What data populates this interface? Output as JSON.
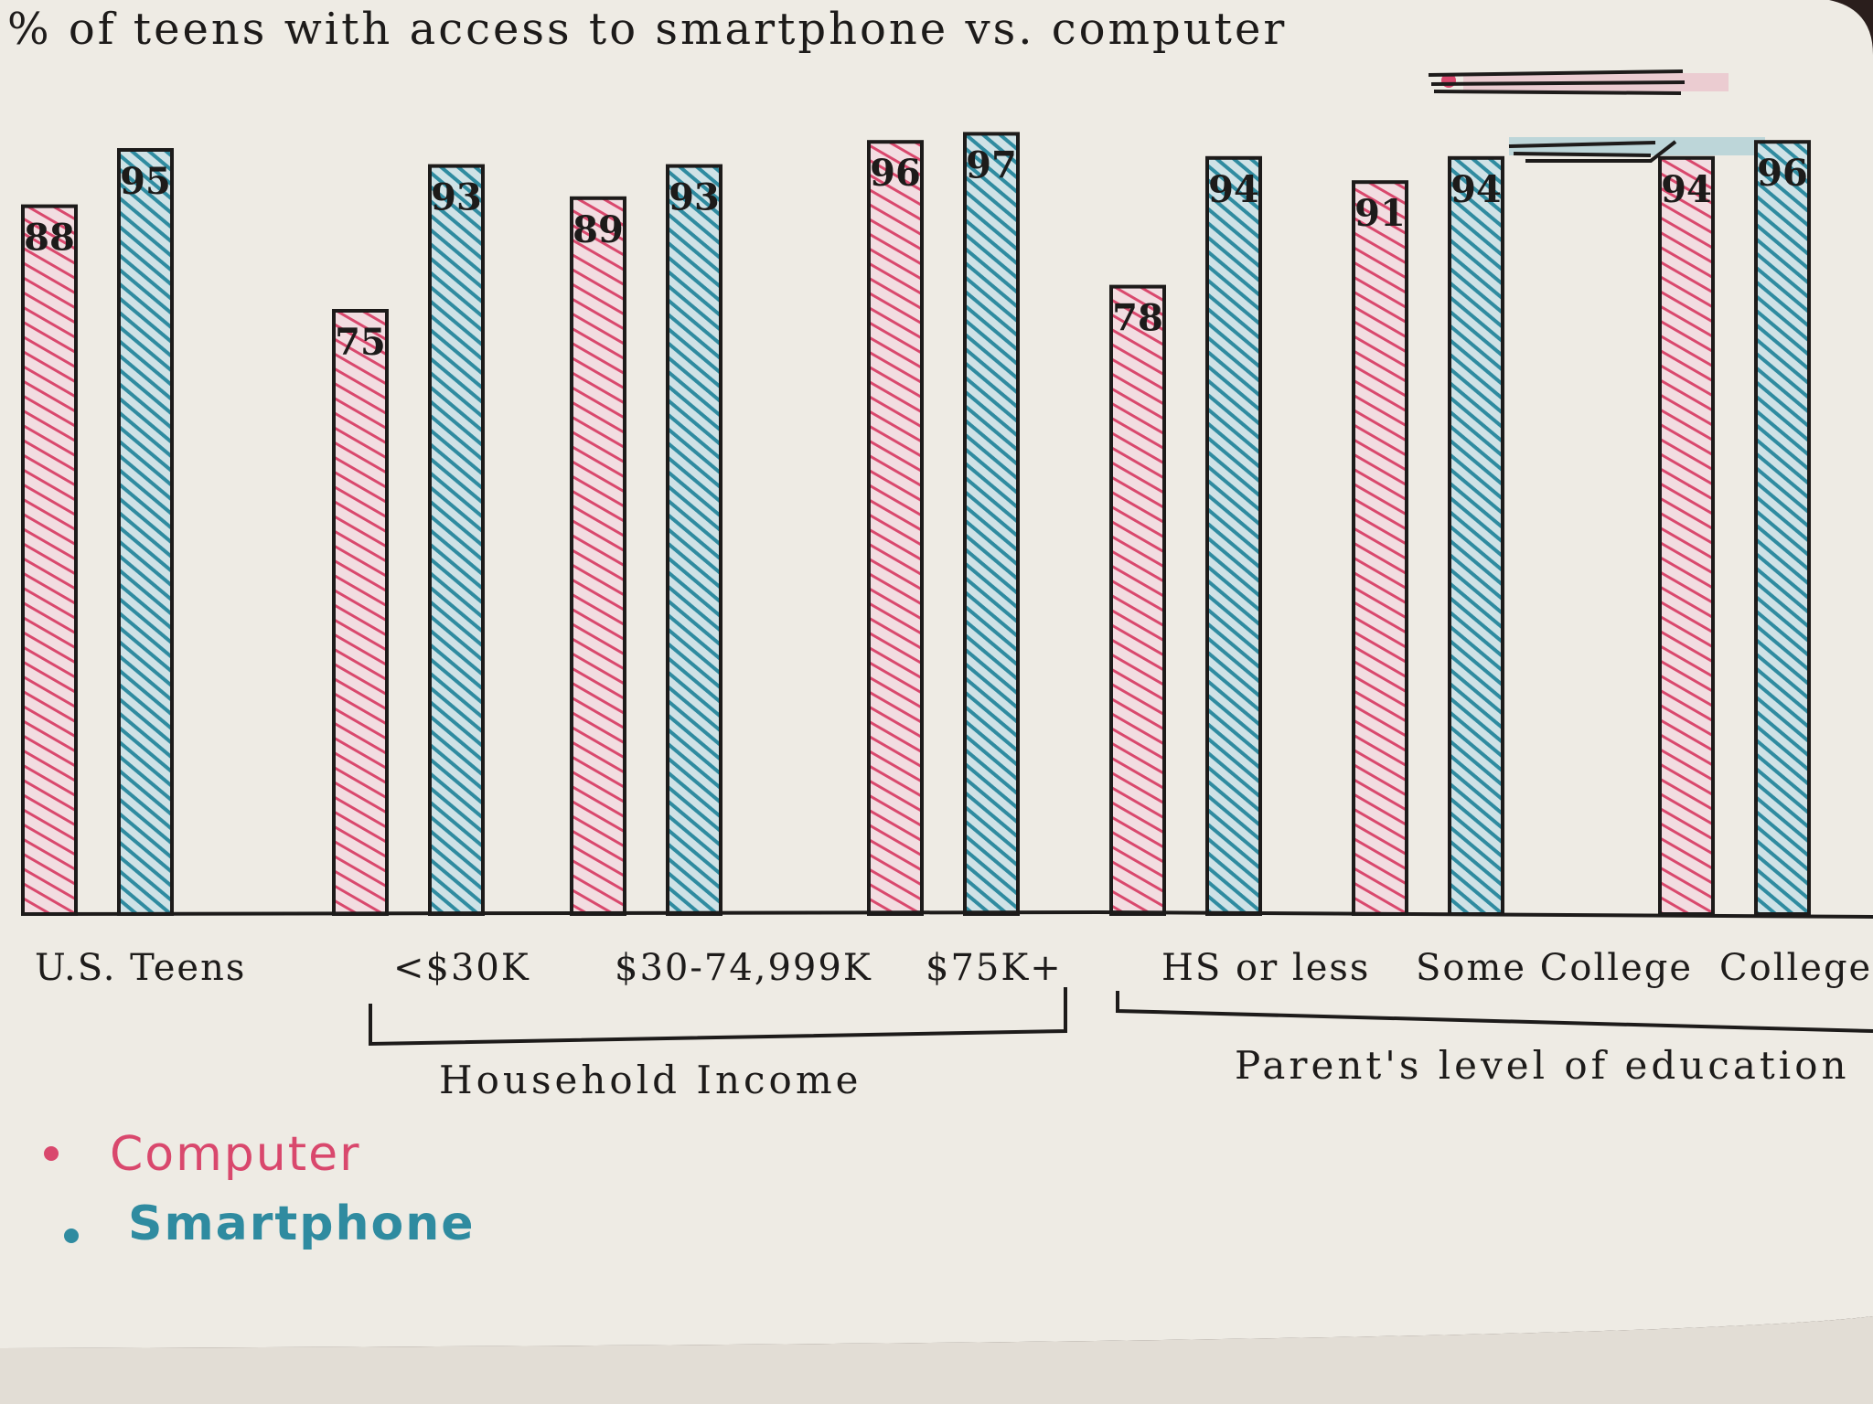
{
  "chart_data": {
    "type": "bar",
    "title": "% of teens with access to smartphone vs. computer",
    "categories": [
      "U.S. Teens",
      "<$30K",
      "$30-74,999K",
      "$75K+",
      "HS or less",
      "Some College",
      "College+"
    ],
    "series": [
      {
        "name": "Computer",
        "values": [
          88,
          75,
          89,
          96,
          78,
          91,
          94
        ]
      },
      {
        "name": "Smartphone",
        "values": [
          95,
          93,
          93,
          97,
          94,
          94,
          96
        ]
      }
    ],
    "groups": [
      {
        "label": "Household Income",
        "categories": [
          "<$30K",
          "$30-74,999K",
          "$75K+"
        ]
      },
      {
        "label": "Parent's level of education",
        "categories": [
          "HS or less",
          "Some College",
          "College+"
        ]
      }
    ],
    "ylim": [
      0,
      100
    ],
    "grid": false,
    "legend_placement": "bottom-left",
    "colors": {
      "Computer": "#d9486d",
      "Smartphone": "#2f8ba0",
      "paper": "#eeebe4",
      "ink": "#1d1b1a"
    }
  }
}
